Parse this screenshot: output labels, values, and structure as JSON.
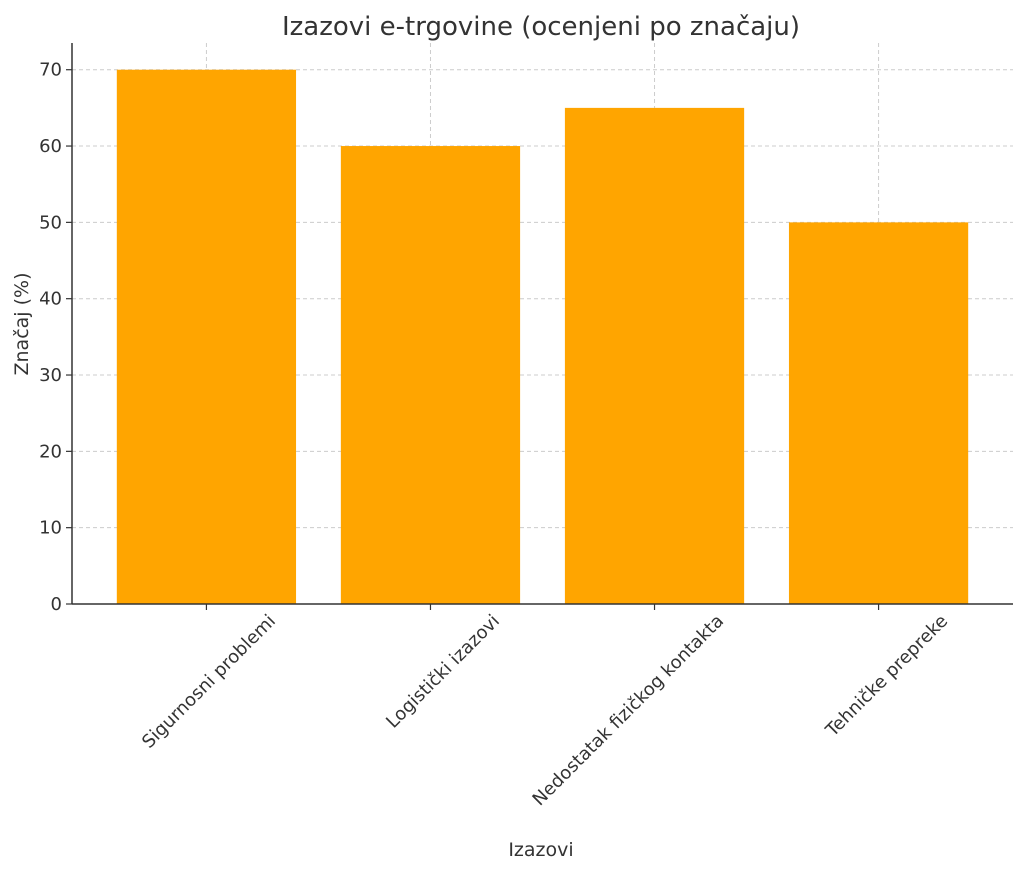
{
  "chart_data": {
    "type": "bar",
    "title": "Izazovi e-trgovine (ocenjeni po značaju)",
    "xlabel": "Izazovi",
    "ylabel": "Značaj (%)",
    "categories": [
      "Sigurnosni problemi",
      "Logistički izazovi",
      "Nedostatak fizičkog kontakta",
      "Tehničke prepreke"
    ],
    "values": [
      70,
      60,
      65,
      50
    ],
    "ylim": [
      0,
      73.5
    ],
    "yticks": [
      "0",
      "10",
      "20",
      "30",
      "40",
      "50",
      "60",
      "70"
    ],
    "grid": true,
    "bar_color": "#ffa500"
  }
}
